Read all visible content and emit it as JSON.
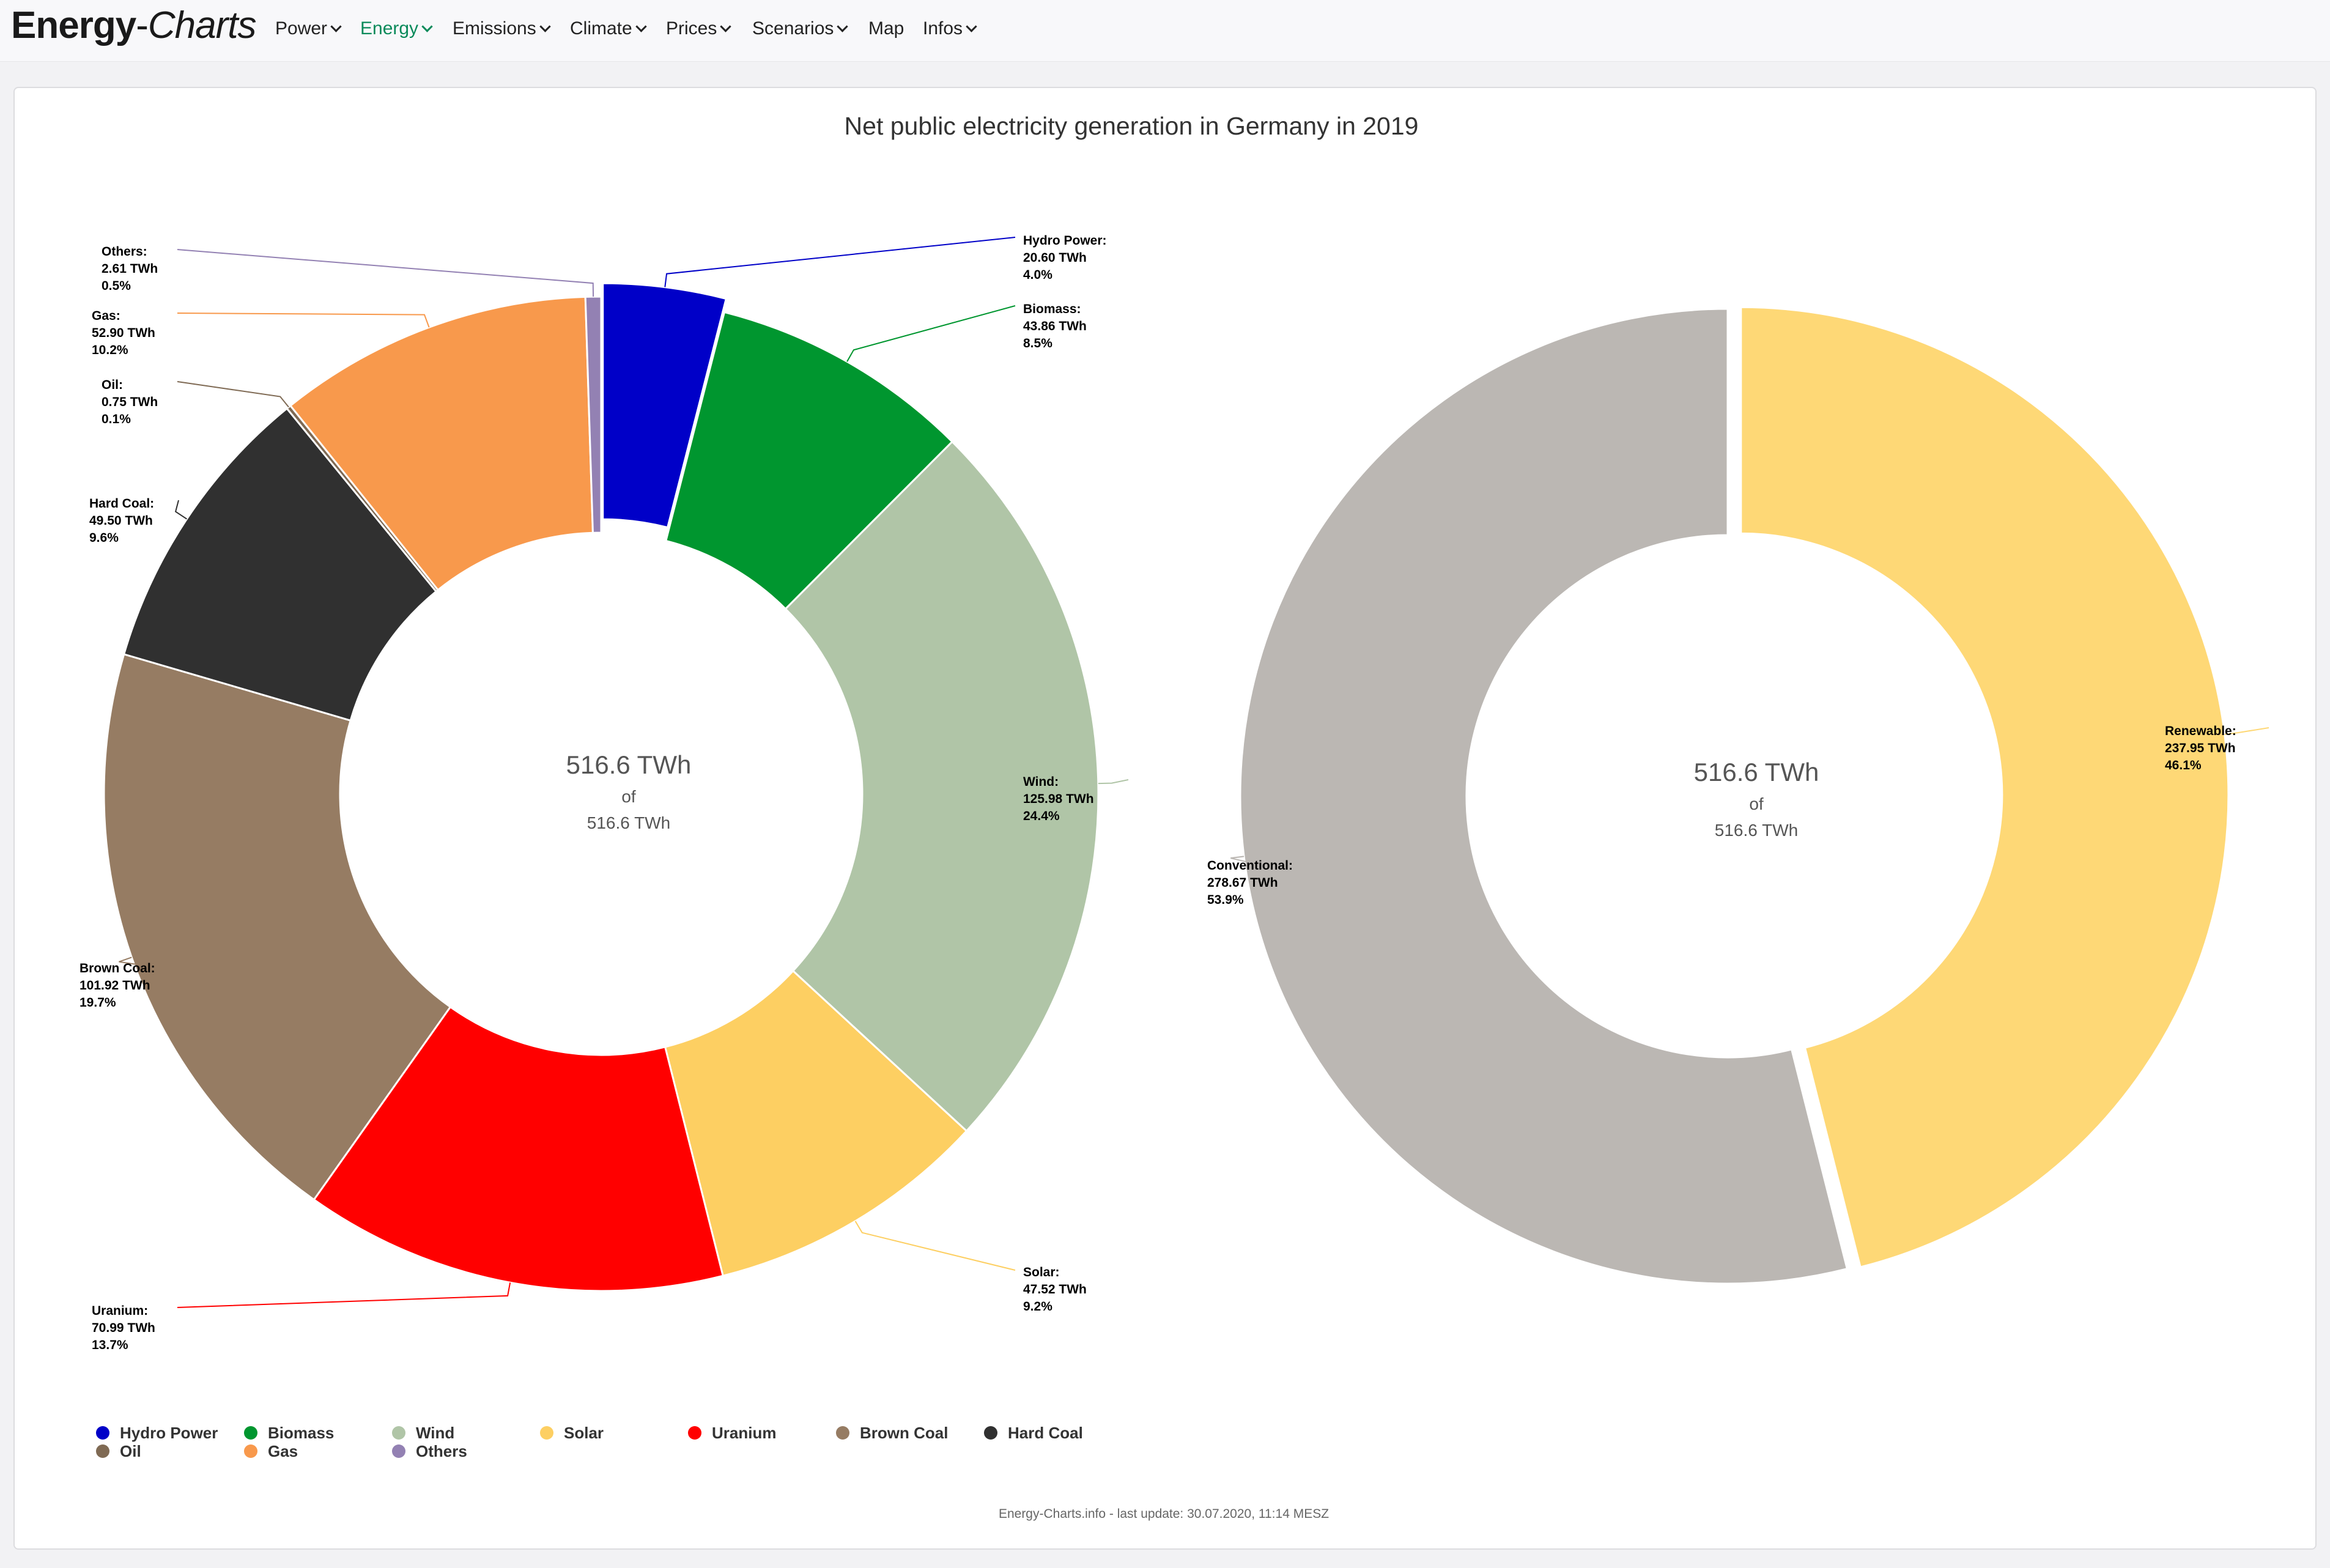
{
  "nav": {
    "brand_main": "Energy",
    "brand_dash": "-",
    "brand_italic": "Charts",
    "items": [
      {
        "label": "Power",
        "active": false,
        "dropdown": true
      },
      {
        "label": "Energy",
        "active": true,
        "dropdown": true
      },
      {
        "label": "Emissions",
        "active": false,
        "dropdown": true
      },
      {
        "label": "Climate",
        "active": false,
        "dropdown": true
      },
      {
        "label": "Prices",
        "active": false,
        "dropdown": true
      },
      {
        "label": "Scenarios",
        "active": false,
        "dropdown": true
      },
      {
        "label": "Map",
        "active": false,
        "dropdown": false
      },
      {
        "label": "Infos",
        "active": false,
        "dropdown": true
      }
    ],
    "active_color": "#0a8a5a"
  },
  "chart_data": [
    {
      "type": "pie",
      "variant": "donut",
      "title": "Net public electricity generation in Germany in 2019",
      "center_value": "516.6 TWh",
      "center_of": "of",
      "center_total": "516.6 TWh",
      "unit": "TWh",
      "slices": [
        {
          "name": "Hydro Power",
          "value": 20.6,
          "percent": "4.0%",
          "value_label": "20.60 TWh",
          "color": "#0000c8",
          "label": "Hydro Power:"
        },
        {
          "name": "Biomass",
          "value": 43.86,
          "percent": "8.5%",
          "value_label": "43.86 TWh",
          "color": "#00962f",
          "label": "Biomass:"
        },
        {
          "name": "Wind",
          "value": 125.98,
          "percent": "24.4%",
          "value_label": "125.98 TWh",
          "color": "#b0c5a7",
          "label": "Wind:"
        },
        {
          "name": "Solar",
          "value": 47.52,
          "percent": "9.2%",
          "value_label": "47.52 TWh",
          "color": "#fdcf62",
          "label": "Solar:"
        },
        {
          "name": "Uranium",
          "value": 70.99,
          "percent": "13.7%",
          "value_label": "70.99 TWh",
          "color": "#ff0000",
          "label": "Uranium:"
        },
        {
          "name": "Brown Coal",
          "value": 101.92,
          "percent": "19.7%",
          "value_label": "101.92 TWh",
          "color": "#967c63",
          "label": "Brown Coal:"
        },
        {
          "name": "Hard Coal",
          "value": 49.5,
          "percent": "9.6%",
          "value_label": "49.50 TWh",
          "color": "#303030",
          "label": "Hard Coal:"
        },
        {
          "name": "Oil",
          "value": 0.75,
          "percent": "0.1%",
          "value_label": "0.75 TWh",
          "color": "#7f6a54",
          "label": "Oil:"
        },
        {
          "name": "Gas",
          "value": 52.9,
          "percent": "10.2%",
          "value_label": "52.90 TWh",
          "color": "#f8994c",
          "label": "Gas:"
        },
        {
          "name": "Others",
          "value": 2.61,
          "percent": "0.5%",
          "value_label": "2.61 TWh",
          "color": "#9381b3",
          "label": "Others:"
        }
      ],
      "legend": [
        "Hydro Power",
        "Biomass",
        "Wind",
        "Solar",
        "Uranium",
        "Brown Coal",
        "Hard Coal",
        "Oil",
        "Gas",
        "Others"
      ],
      "legend_placement": "bottom-left"
    },
    {
      "type": "pie",
      "variant": "donut",
      "center_value": "516.6 TWh",
      "center_of": "of",
      "center_total": "516.6 TWh",
      "unit": "TWh",
      "slices": [
        {
          "name": "Renewable",
          "value": 237.95,
          "percent": "46.1%",
          "value_label": "237.95 TWh",
          "color": "#fed876",
          "label": "Renewable:"
        },
        {
          "name": "Conventional",
          "value": 278.67,
          "percent": "53.9%",
          "value_label": "278.67 TWh",
          "color": "#bbb7b3",
          "label": "Conventional:"
        }
      ]
    }
  ],
  "credits": "Energy-Charts.info - last update: 30.07.2020, 11:14 MESZ"
}
